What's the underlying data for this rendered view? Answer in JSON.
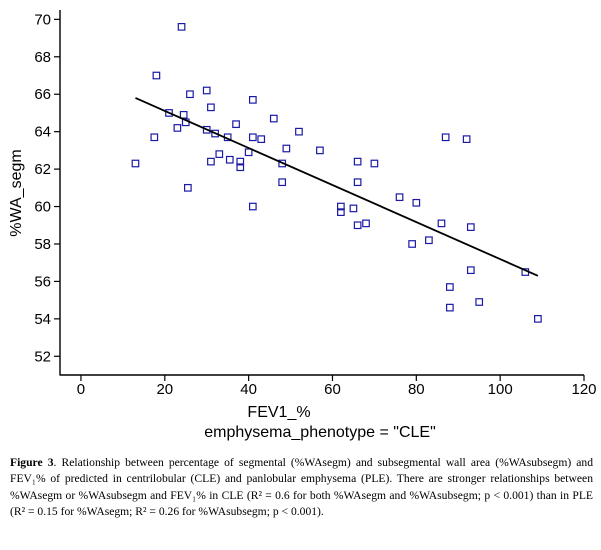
{
  "chart_data": {
    "type": "scatter",
    "xlabel": "FEV1_%",
    "subtitle": "emphysema_phenotype = \"CLE\"",
    "ylabel": "%WA_segm",
    "xlim": [
      -5,
      120
    ],
    "ylim": [
      51,
      70.5
    ],
    "xticks": [
      0,
      20,
      40,
      60,
      80,
      100,
      120
    ],
    "yticks": [
      52,
      54,
      56,
      58,
      60,
      62,
      64,
      66,
      68,
      70
    ],
    "grid": false,
    "points": [
      [
        13,
        62.3
      ],
      [
        18,
        67
      ],
      [
        17.5,
        63.7
      ],
      [
        21,
        65
      ],
      [
        23,
        64.2
      ],
      [
        24,
        69.6
      ],
      [
        24.5,
        64.9
      ],
      [
        25,
        64.5
      ],
      [
        25.5,
        61
      ],
      [
        26,
        66
      ],
      [
        30,
        66.2
      ],
      [
        30,
        64.1
      ],
      [
        31,
        65.3
      ],
      [
        31,
        62.4
      ],
      [
        32,
        63.9
      ],
      [
        33,
        62.8
      ],
      [
        35,
        63.7
      ],
      [
        35.5,
        62.5
      ],
      [
        37,
        64.4
      ],
      [
        38,
        62.4
      ],
      [
        38,
        62.1
      ],
      [
        40,
        62.9
      ],
      [
        41,
        65.7
      ],
      [
        41,
        63.7
      ],
      [
        41,
        60
      ],
      [
        43,
        63.6
      ],
      [
        46,
        64.7
      ],
      [
        48,
        62.3
      ],
      [
        48,
        61.3
      ],
      [
        49,
        63.1
      ],
      [
        52,
        64
      ],
      [
        57,
        63
      ],
      [
        62,
        60
      ],
      [
        62,
        59.7
      ],
      [
        65,
        59.9
      ],
      [
        66,
        62.4
      ],
      [
        66,
        61.3
      ],
      [
        66,
        59
      ],
      [
        68,
        59.1
      ],
      [
        70,
        62.3
      ],
      [
        76,
        60.5
      ],
      [
        79,
        58
      ],
      [
        80,
        60.2
      ],
      [
        83,
        58.2
      ],
      [
        86,
        59.1
      ],
      [
        87,
        63.7
      ],
      [
        88,
        55.7
      ],
      [
        88,
        54.6
      ],
      [
        92,
        63.6
      ],
      [
        93,
        58.9
      ],
      [
        93,
        56.6
      ],
      [
        95,
        54.9
      ],
      [
        106,
        56.5
      ],
      [
        109,
        54
      ]
    ],
    "regression_line": {
      "x": [
        13,
        109
      ],
      "y": [
        65.8,
        56.3
      ]
    },
    "colors": {
      "marker": "#1a1aa6",
      "line": "#000000",
      "axis": "#000000"
    }
  },
  "caption": {
    "label": "Figure 3",
    "text": ". Relationship between percentage of segmental (%WAsegm) and subsegmental wall area (%WAsubsegm) and FEV₁% of predicted in centrilobular (CLE) and panlobular emphysema (PLE). There are stronger relationships between %WAsegm or %WAsubsegm and FEV₁% in CLE (R² = 0.6 for both %WAsegm and %WAsubsegm; p < 0.001) than in PLE (R² = 0.15 for %WAsegm; R² = 0.26 for %WAsubsegm; p < 0.001)."
  }
}
